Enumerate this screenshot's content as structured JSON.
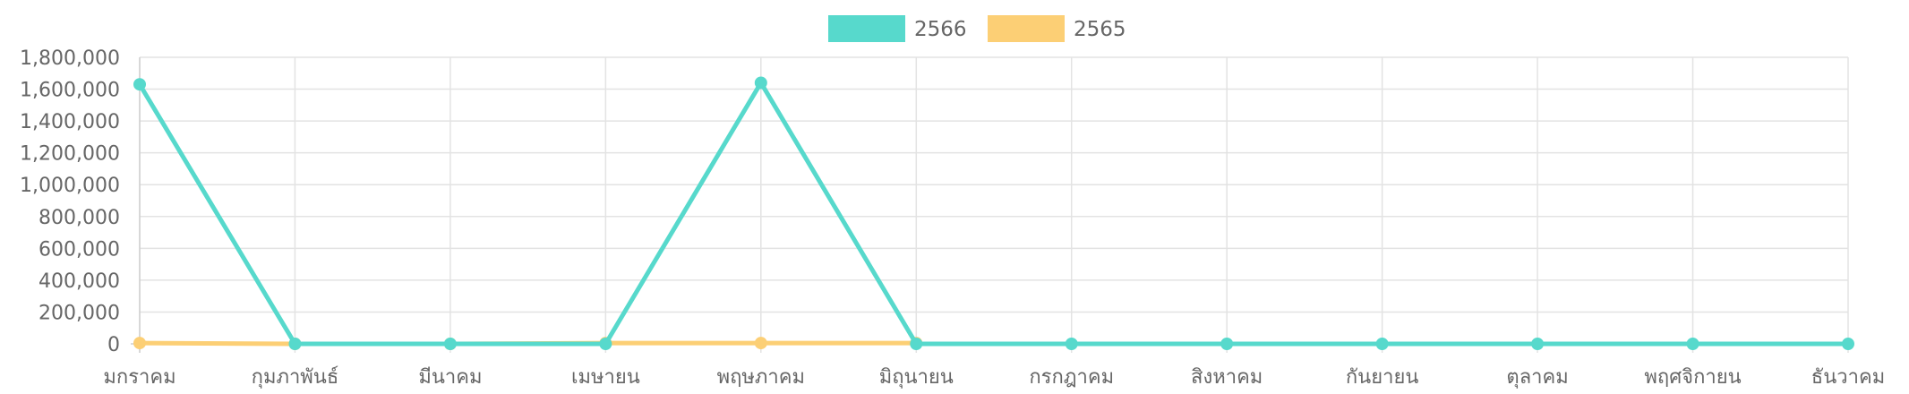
{
  "chart_data": {
    "type": "line",
    "title": "",
    "xlabel": "",
    "ylabel": "",
    "categories": [
      "มกราคม",
      "กุมภาพันธ์",
      "มีนาคม",
      "เมษายน",
      "พฤษภาคม",
      "มิถุนายน",
      "กรกฎาคม",
      "สิงหาคม",
      "กันยายน",
      "ตุลาคม",
      "พฤศจิกายน",
      "ธันวาคม"
    ],
    "y_ticks": [
      "0",
      "200,000",
      "400,000",
      "600,000",
      "800,000",
      "1,000,000",
      "1,200,000",
      "1,400,000",
      "1,600,000",
      "1,800,000"
    ],
    "ylim": [
      0,
      1800000
    ],
    "grid": true,
    "legend_position": "top",
    "series": [
      {
        "name": "2566",
        "color": "#57d9cc",
        "values": [
          1630000,
          0,
          0,
          0,
          1640000,
          0,
          0,
          0,
          0,
          0,
          0,
          0
        ]
      },
      {
        "name": "2565",
        "color": "#fccf75",
        "values": [
          5000,
          0,
          0,
          5000,
          5000,
          5000,
          null,
          null,
          null,
          null,
          null,
          null
        ]
      }
    ]
  }
}
